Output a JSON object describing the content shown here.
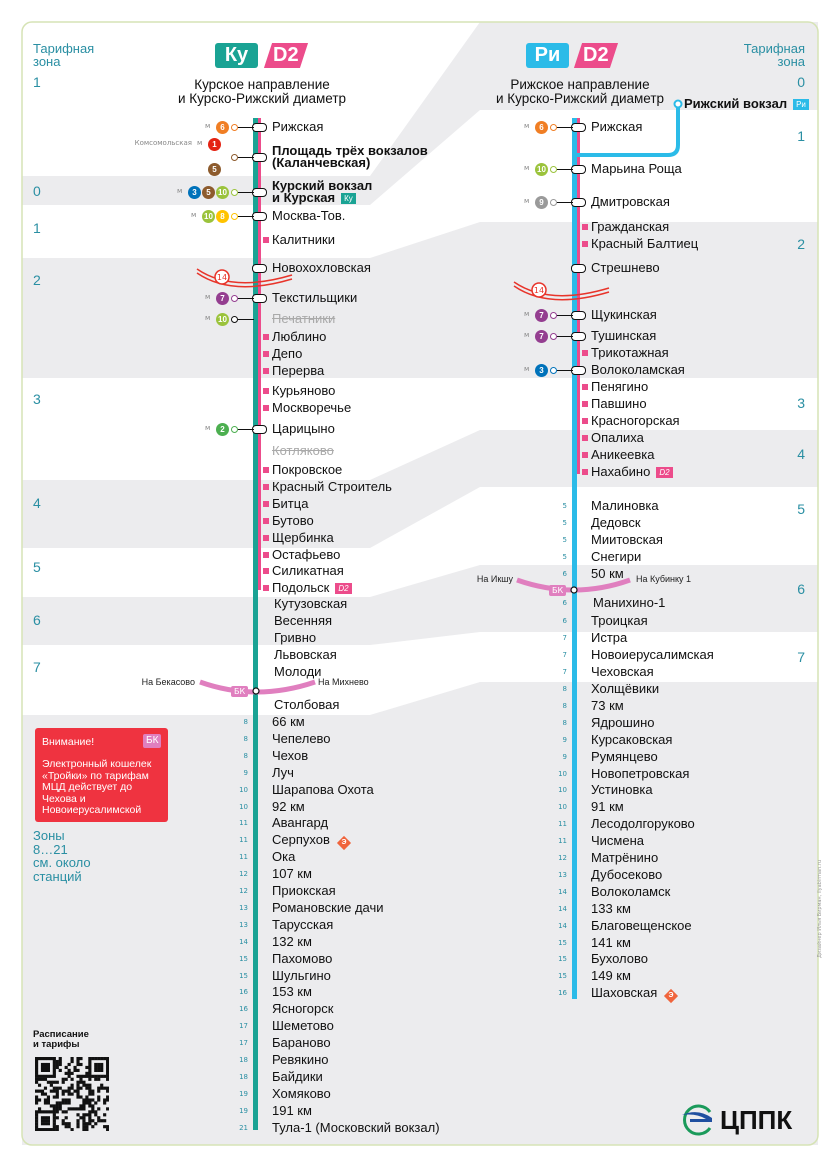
{
  "colors": {
    "kursk": "#1aa394",
    "riga": "#2bbbe8",
    "d2": "#ec4c8b",
    "zone_text": "#2a8fa3",
    "band": "#ececee",
    "warning": "#ef3340",
    "bk": "#e07fbf",
    "mcc": "#e8342a",
    "metro": {
      "1": "#e42313",
      "2": "#4caf50",
      "3": "#0072ba",
      "5": "#8d5b2d",
      "6": "#f07e24",
      "7": "#943e90",
      "8": "#ffc300",
      "9": "#9a9a9a",
      "10": "#9bc33c"
    }
  },
  "zone_header": "Тарифная\nзона",
  "left_zones": [
    "1",
    "0",
    "1",
    "2",
    "3",
    "4",
    "5",
    "6",
    "7"
  ],
  "right_zones": [
    "0",
    "1",
    "2",
    "3",
    "4",
    "5",
    "6",
    "7"
  ],
  "kursk": {
    "badge": "Ку",
    "d2_badge": "D2",
    "title": "Курское направление\nи Курско-Рижский диаметр",
    "bk": {
      "label": "БК",
      "left": "На Бекасово",
      "right": "На Михнево"
    },
    "mcc_label": "14",
    "stations": [
      {
        "name": "Рижская",
        "metro": [
          "6"
        ],
        "transfer": true,
        "d2": true
      },
      {
        "name": "Площадь трёх вокзалов\n(Каланчевская)",
        "bold": true,
        "metro": [
          "1",
          "5"
        ],
        "metro_name": "Комсомольская",
        "transfer": true,
        "d2": true
      },
      {
        "name": "Курский вокзал\nи Курская",
        "bold": true,
        "metro": [
          "3",
          "5",
          "10"
        ],
        "transfer": true,
        "d2": true,
        "badge": "Ку"
      },
      {
        "name": "Москва-Тов.",
        "metro": [
          "10",
          "8"
        ],
        "transfer": true,
        "d2": true
      },
      {
        "name": "Калитники",
        "d2": true
      },
      {
        "name": "Новохохловская",
        "mcc": true,
        "transfer": true,
        "d2": true
      },
      {
        "name": "Текстильщики",
        "metro": [
          "7"
        ],
        "transfer": true,
        "d2": true
      },
      {
        "name": "Печатники",
        "metro": [
          "10"
        ],
        "closed": true
      },
      {
        "name": "Люблино",
        "d2": true
      },
      {
        "name": "Депо",
        "d2": true
      },
      {
        "name": "Перерва",
        "d2": true
      },
      {
        "name": "Курьяново",
        "d2": true
      },
      {
        "name": "Москворечье",
        "d2": true
      },
      {
        "name": "Царицыно",
        "metro": [
          "2"
        ],
        "transfer": true,
        "d2": true
      },
      {
        "name": "Котляково",
        "closed": true
      },
      {
        "name": "Покровское",
        "d2": true
      },
      {
        "name": "Красный Строитель",
        "d2": true
      },
      {
        "name": "Битца",
        "d2": true
      },
      {
        "name": "Бутово",
        "d2": true
      },
      {
        "name": "Щербинка",
        "d2": true
      },
      {
        "name": "Остафьево",
        "d2": true
      },
      {
        "name": "Силикатная",
        "d2": true
      },
      {
        "name": "Подольск",
        "d2": true,
        "d2_badge": "D2"
      },
      {
        "name": "Кутузовская"
      },
      {
        "name": "Весенняя"
      },
      {
        "name": "Гривно"
      },
      {
        "name": "Львовская"
      },
      {
        "name": "Молоди"
      },
      {
        "name": "Столбовая",
        "bk": true
      },
      {
        "name": "66 км",
        "zone": "8"
      },
      {
        "name": "Чепелево",
        "zone": "8"
      },
      {
        "name": "Чехов",
        "zone": "8"
      },
      {
        "name": "Луч",
        "zone": "9"
      },
      {
        "name": "Шарапова Охота",
        "zone": "10"
      },
      {
        "name": "92 км",
        "zone": "10"
      },
      {
        "name": "Авангард",
        "zone": "11"
      },
      {
        "name": "Серпухов",
        "zone": "11",
        "express": "Э"
      },
      {
        "name": "Ока",
        "zone": "11"
      },
      {
        "name": "107 км",
        "zone": "12"
      },
      {
        "name": "Приокская",
        "zone": "12"
      },
      {
        "name": "Романовские дачи",
        "zone": "13"
      },
      {
        "name": "Тарусская",
        "zone": "13"
      },
      {
        "name": "132 км",
        "zone": "14"
      },
      {
        "name": "Пахомово",
        "zone": "15"
      },
      {
        "name": "Шульгино",
        "zone": "15"
      },
      {
        "name": "153 км",
        "zone": "16"
      },
      {
        "name": "Ясногорск",
        "zone": "16"
      },
      {
        "name": "Шеметово",
        "zone": "17"
      },
      {
        "name": "Бараново",
        "zone": "17"
      },
      {
        "name": "Ревякино",
        "zone": "18"
      },
      {
        "name": "Байдики",
        "zone": "18"
      },
      {
        "name": "Хомяково",
        "zone": "19"
      },
      {
        "name": "191 км",
        "zone": "19"
      },
      {
        "name": "Тула-1 (Московский вокзал)",
        "zone": "21"
      }
    ]
  },
  "riga": {
    "badge": "Ри",
    "d2_badge": "D2",
    "title": "Рижское направление\nи Курско-Рижский диаметр",
    "terminal": {
      "name": "Рижский вокзал",
      "badge": "Ри"
    },
    "bk": {
      "label": "БК",
      "left": "На Икшу",
      "right": "На Кубинку 1"
    },
    "mcc_label": "14",
    "stations": [
      {
        "name": "Рижская",
        "metro": [
          "6"
        ],
        "transfer": true,
        "d2": true
      },
      {
        "name": "Марьина Роща",
        "metro": [
          "10"
        ],
        "transfer": true,
        "d2": true
      },
      {
        "name": "Дмитровская",
        "metro": [
          "9"
        ],
        "transfer": true,
        "d2": true
      },
      {
        "name": "Гражданская",
        "d2": true
      },
      {
        "name": "Красный Балтиец",
        "d2": true
      },
      {
        "name": "Стрешнево",
        "mcc": true,
        "transfer": true,
        "d2": true
      },
      {
        "name": "Щукинская",
        "metro": [
          "7"
        ],
        "transfer": true,
        "d2": true
      },
      {
        "name": "Тушинская",
        "metro": [
          "7"
        ],
        "transfer": true,
        "d2": true
      },
      {
        "name": "Трикотажная",
        "d2": true
      },
      {
        "name": "Волоколамская",
        "metro": [
          "3"
        ],
        "transfer": true,
        "d2": true
      },
      {
        "name": "Пенягино",
        "d2": true
      },
      {
        "name": "Павшино",
        "d2": true
      },
      {
        "name": "Красногорская",
        "d2": true
      },
      {
        "name": "Опалиха",
        "d2": true
      },
      {
        "name": "Аникеевка",
        "d2": true
      },
      {
        "name": "Нахабино",
        "d2": true,
        "d2_badge": "D2"
      },
      {
        "name": "Малиновка",
        "zone": "5"
      },
      {
        "name": "Дедовск",
        "zone": "5"
      },
      {
        "name": "Миитовская",
        "zone": "5"
      },
      {
        "name": "Снегири",
        "zone": "5"
      },
      {
        "name": "50 км",
        "zone": "6"
      },
      {
        "name": "Манихино-1",
        "zone": "6",
        "bk": true
      },
      {
        "name": "Троицкая",
        "zone": "6"
      },
      {
        "name": "Истра",
        "zone": "7"
      },
      {
        "name": "Новоиерусалимская",
        "zone": "7"
      },
      {
        "name": "Чеховская",
        "zone": "7"
      },
      {
        "name": "Холщёвики",
        "zone": "8"
      },
      {
        "name": "73 км",
        "zone": "8"
      },
      {
        "name": "Ядрошино",
        "zone": "8"
      },
      {
        "name": "Курсаковская",
        "zone": "9"
      },
      {
        "name": "Румянцево",
        "zone": "9"
      },
      {
        "name": "Новопетровская",
        "zone": "10"
      },
      {
        "name": "Устиновка",
        "zone": "10"
      },
      {
        "name": "91 км",
        "zone": "10"
      },
      {
        "name": "Лесодолгоруково",
        "zone": "11"
      },
      {
        "name": "Чисмена",
        "zone": "11"
      },
      {
        "name": "Матрёнино",
        "zone": "12"
      },
      {
        "name": "Дубосеково",
        "zone": "13"
      },
      {
        "name": "Волоколамск",
        "zone": "14"
      },
      {
        "name": "133 км",
        "zone": "14"
      },
      {
        "name": "Благовещенское",
        "zone": "14"
      },
      {
        "name": "141 км",
        "zone": "15"
      },
      {
        "name": "Бухолово",
        "zone": "15"
      },
      {
        "name": "149 км",
        "zone": "15"
      },
      {
        "name": "Шаховская",
        "zone": "16",
        "express": "Э"
      }
    ]
  },
  "warning": {
    "title": "Внимание!",
    "badge": "БК",
    "text": "Электронный кошелек «Тройки» по тарифам МЦД действует до Чехова и Новоиерусалимской"
  },
  "zones_note": "Зоны\n8…21\nсм. около\nстанций",
  "schedule_label": "Расписание\nи тарифы",
  "credit": "Дизайнер Илья Бирман, ilyabirman.ru",
  "logo": "ЦППК"
}
